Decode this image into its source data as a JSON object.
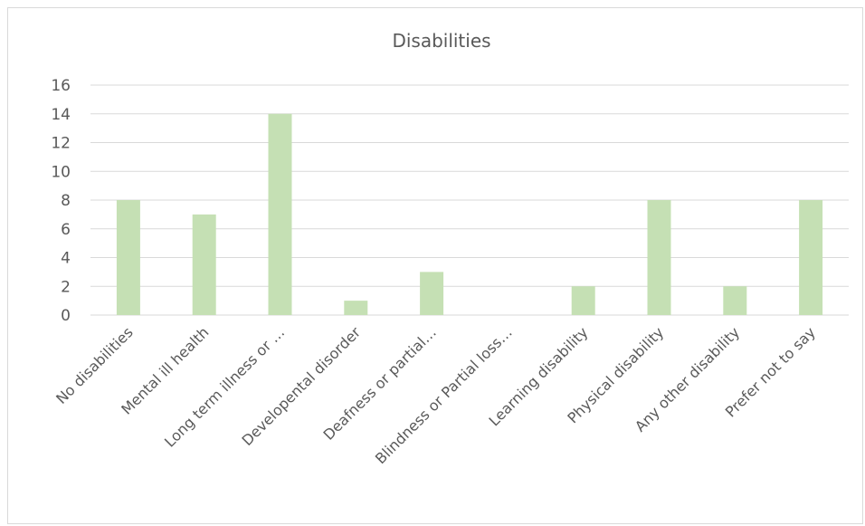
{
  "chart_data": {
    "type": "bar",
    "title": "Disabilities",
    "xlabel": "",
    "ylabel": "",
    "categories": [
      "No disabilities",
      "Mental ill health",
      "Long term illness or …",
      "Developental disorder",
      "Deafness or partial…",
      "Blindness or Partial loss…",
      "Learning disability",
      "Physical disability",
      "Any other disability",
      "Prefer not to say"
    ],
    "values": [
      8,
      7,
      14,
      1,
      3,
      0,
      2,
      8,
      2,
      8
    ],
    "ylim": [
      0,
      16
    ],
    "yticks": [
      "0",
      "2",
      "4",
      "6",
      "8",
      "10",
      "12",
      "14",
      "16"
    ],
    "grid": true,
    "legend": "none",
    "bar_color": "#c5e0b4",
    "grid_color": "#d9d9d9",
    "text_color": "#595959"
  }
}
